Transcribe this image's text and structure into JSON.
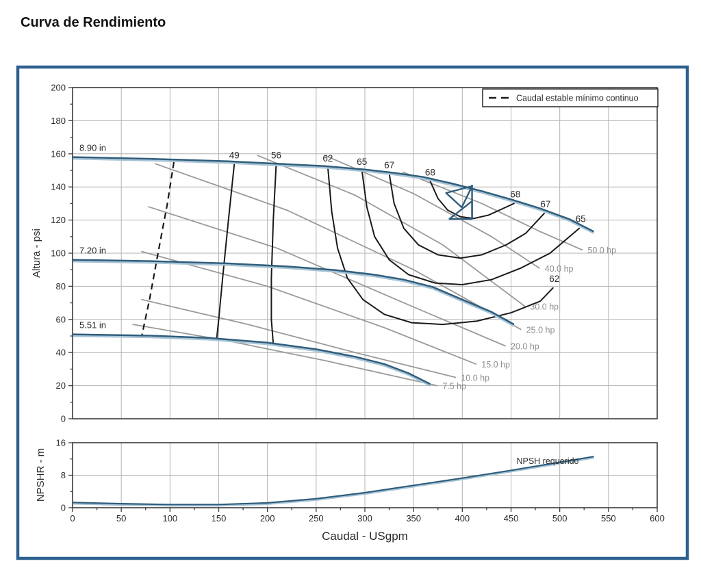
{
  "title": "Curva de Rendimiento",
  "colors": {
    "frame_border": "#2e6090",
    "curve_dark": "#2f5d7c",
    "curve_light": "#a8c4d6",
    "contour": "#1a1a1a",
    "power_line": "#9a9a9a",
    "power_text": "#8d8d8d",
    "grid": "#b3b3b3",
    "axis_frame": "#3c3c3c",
    "text": "#2b2b2b"
  },
  "chart_data": {
    "type": "line",
    "title": "Curva de Rendimiento",
    "main": {
      "xlabel": "Caudal - USgpm",
      "ylabel": "Altura - psi",
      "xlim": [
        0,
        600
      ],
      "ylim": [
        0,
        200
      ],
      "xticks": [
        0,
        50,
        100,
        150,
        200,
        250,
        300,
        350,
        400,
        450,
        500,
        550,
        600
      ],
      "yticks": [
        0,
        20,
        40,
        60,
        80,
        100,
        120,
        140,
        160,
        180,
        200
      ],
      "x_minor_step": 25,
      "y_minor_step": 10,
      "grid": true,
      "legend": {
        "label": "Caudal estable mínimo continuo",
        "style": "dashed",
        "position": "top-right"
      },
      "impeller_curves": [
        {
          "label": "8.90 in",
          "points": [
            [
              0,
              158
            ],
            [
              80,
              157
            ],
            [
              160,
              155.5
            ],
            [
              210,
              154
            ],
            [
              260,
              152.5
            ],
            [
              300,
              150.5
            ],
            [
              330,
              148.5
            ],
            [
              360,
              146
            ],
            [
              390,
              142
            ],
            [
              420,
              137.5
            ],
            [
              450,
              132.5
            ],
            [
              480,
              127
            ],
            [
              510,
              120.5
            ],
            [
              535,
              113
            ]
          ]
        },
        {
          "label": "7.20 in",
          "points": [
            [
              0,
              96
            ],
            [
              80,
              95.2
            ],
            [
              160,
              93.8
            ],
            [
              220,
              92
            ],
            [
              270,
              89.8
            ],
            [
              310,
              87
            ],
            [
              340,
              84
            ],
            [
              370,
              79.5
            ],
            [
              400,
              72
            ],
            [
              430,
              64.5
            ],
            [
              453,
              57
            ]
          ]
        },
        {
          "label": "5.51 in",
          "points": [
            [
              0,
              51
            ],
            [
              80,
              50.2
            ],
            [
              140,
              48.8
            ],
            [
              200,
              46
            ],
            [
              250,
              42
            ],
            [
              290,
              37.5
            ],
            [
              320,
              33
            ],
            [
              345,
              27.5
            ],
            [
              367,
              21
            ]
          ]
        }
      ],
      "min_flow_line": {
        "style": "dashed",
        "points": [
          [
            104,
            155
          ],
          [
            97,
            129
          ],
          [
            88,
            101
          ],
          [
            79,
            72
          ],
          [
            71,
            50
          ]
        ]
      },
      "efficiency_contours": [
        {
          "value": "49",
          "label_at_start": true,
          "label_at_end": false,
          "points": [
            [
              166,
              154
            ],
            [
              160,
              120
            ],
            [
              154,
              85
            ],
            [
              150,
              60
            ],
            [
              148,
              49
            ]
          ]
        },
        {
          "value": "56",
          "label_at_start": true,
          "label_at_end": false,
          "points": [
            [
              209,
              154
            ],
            [
              206,
              120
            ],
            [
              204,
              85
            ],
            [
              204,
              60
            ],
            [
              206,
              45
            ]
          ]
        },
        {
          "value": "62",
          "label_at_start": true,
          "label_at_end": true,
          "points": [
            [
              262,
              152
            ],
            [
              266,
              125
            ],
            [
              272,
              103
            ],
            [
              282,
              85
            ],
            [
              298,
              72
            ],
            [
              320,
              63
            ],
            [
              348,
              58
            ],
            [
              380,
              57
            ],
            [
              415,
              59
            ],
            [
              450,
              64
            ],
            [
              480,
              71
            ],
            [
              493,
              79
            ]
          ]
        },
        {
          "value": "65",
          "label_at_start": true,
          "label_at_end": true,
          "points": [
            [
              297,
              150
            ],
            [
              302,
              128
            ],
            [
              310,
              110
            ],
            [
              325,
              96
            ],
            [
              345,
              87
            ],
            [
              372,
              82
            ],
            [
              400,
              81
            ],
            [
              430,
              84
            ],
            [
              460,
              91
            ],
            [
              490,
              100
            ],
            [
              520,
              115
            ]
          ]
        },
        {
          "value": "67",
          "label_at_start": true,
          "label_at_end": true,
          "points": [
            [
              325,
              148
            ],
            [
              330,
              130
            ],
            [
              340,
              115
            ],
            [
              355,
              105
            ],
            [
              375,
              99
            ],
            [
              398,
              97
            ],
            [
              420,
              99
            ],
            [
              445,
              105
            ],
            [
              465,
              112
            ],
            [
              484,
              124
            ]
          ]
        },
        {
          "value": "68",
          "label_at_start": true,
          "label_at_end": true,
          "points": [
            [
              367,
              143.5
            ],
            [
              375,
              133
            ],
            [
              385,
              126
            ],
            [
              398,
              122
            ],
            [
              412,
              121
            ],
            [
              427,
              123
            ],
            [
              440,
              126.5
            ],
            [
              453,
              130
            ]
          ]
        }
      ],
      "power_lines": [
        {
          "label": "7.5 hp",
          "points": [
            [
              62,
              57
            ],
            [
              160,
              47
            ],
            [
              260,
              35
            ],
            [
              374,
              20
            ]
          ]
        },
        {
          "label": "10.0 hp",
          "points": [
            [
              71,
              72
            ],
            [
              180,
              57
            ],
            [
              290,
              40
            ],
            [
              393,
              25
            ]
          ]
        },
        {
          "label": "15.0 hp",
          "points": [
            [
              71,
              101
            ],
            [
              200,
              80
            ],
            [
              320,
              55
            ],
            [
              414,
              33
            ]
          ]
        },
        {
          "label": "20.0 hp",
          "points": [
            [
              78,
              128
            ],
            [
              210,
              103
            ],
            [
              340,
              70
            ],
            [
              444,
              44
            ]
          ]
        },
        {
          "label": "25.0 hp",
          "points": [
            [
              85,
              154
            ],
            [
              220,
              126
            ],
            [
              350,
              90
            ],
            [
              460,
              54
            ]
          ]
        },
        {
          "label": "30.0 hp",
          "points": [
            [
              190,
              159
            ],
            [
              290,
              135
            ],
            [
              380,
              105
            ],
            [
              464,
              68
            ]
          ]
        },
        {
          "label": "40.0 hp",
          "points": [
            [
              259,
              159
            ],
            [
              350,
              136
            ],
            [
              430,
              110
            ],
            [
              479,
              91
            ]
          ]
        },
        {
          "label": "50.0 hp",
          "points": [
            [
              339,
              149
            ],
            [
              420,
              130
            ],
            [
              480,
              113
            ],
            [
              523,
              102
            ]
          ]
        }
      ],
      "duty_point_marker": {
        "x": 410,
        "y": 131,
        "shape": "triangle-flag"
      }
    },
    "npsh": {
      "ylabel": "NPSHR - m",
      "ylim": [
        0,
        16
      ],
      "yticks": [
        0,
        8,
        16
      ],
      "y_minor_step": 4,
      "annotation": "NPSH requerido",
      "curve": {
        "points": [
          [
            0,
            1.3
          ],
          [
            50,
            1.0
          ],
          [
            100,
            0.8
          ],
          [
            150,
            0.8
          ],
          [
            200,
            1.2
          ],
          [
            250,
            2.2
          ],
          [
            300,
            3.7
          ],
          [
            350,
            5.5
          ],
          [
            400,
            7.3
          ],
          [
            450,
            9.2
          ],
          [
            500,
            11.2
          ],
          [
            535,
            12.6
          ]
        ]
      }
    }
  }
}
